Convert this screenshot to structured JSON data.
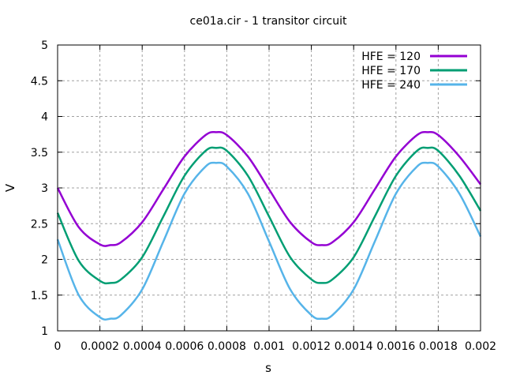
{
  "chart_data": {
    "type": "line",
    "title": "ce01a.cir - 1 transitor circuit",
    "xlabel": "s",
    "ylabel": "V",
    "xlim": [
      0,
      0.002
    ],
    "ylim": [
      1,
      5
    ],
    "x_ticks": [
      "0",
      "0.0002",
      "0.0004",
      "0.0006",
      "0.0008",
      "0.001",
      "0.0012",
      "0.0014",
      "0.0016",
      "0.0018",
      "0.002"
    ],
    "y_ticks": [
      "1",
      "1.5",
      "2",
      "2.5",
      "3",
      "3.5",
      "4",
      "4.5",
      "5"
    ],
    "grid": true,
    "legend_position": "top-right",
    "x": [
      0,
      0.0001,
      0.0002,
      0.00025,
      0.0003,
      0.0004,
      0.0005,
      0.0006,
      0.0007,
      0.00075,
      0.0008,
      0.0009,
      0.001,
      0.0011,
      0.0012,
      0.00125,
      0.0013,
      0.0014,
      0.0015,
      0.0016,
      0.0017,
      0.00175,
      0.0018,
      0.0019,
      0.002
    ],
    "series": [
      {
        "name": "HFE = 120",
        "color": "#9400d3",
        "values": [
          3.0,
          2.45,
          2.21,
          2.2,
          2.24,
          2.52,
          2.98,
          3.44,
          3.74,
          3.78,
          3.74,
          3.44,
          2.98,
          2.52,
          2.24,
          2.2,
          2.24,
          2.52,
          2.98,
          3.44,
          3.74,
          3.78,
          3.74,
          3.44,
          3.05
        ]
      },
      {
        "name": "HFE = 170",
        "color": "#009e73",
        "values": [
          2.65,
          1.98,
          1.7,
          1.67,
          1.72,
          2.03,
          2.6,
          3.17,
          3.52,
          3.56,
          3.52,
          3.17,
          2.6,
          2.03,
          1.72,
          1.67,
          1.72,
          2.03,
          2.6,
          3.17,
          3.52,
          3.56,
          3.52,
          3.17,
          2.68
        ]
      },
      {
        "name": "HFE = 240",
        "color": "#56b4e9",
        "values": [
          2.28,
          1.5,
          1.19,
          1.17,
          1.22,
          1.58,
          2.25,
          2.92,
          3.3,
          3.35,
          3.3,
          2.92,
          2.25,
          1.58,
          1.22,
          1.17,
          1.22,
          1.58,
          2.25,
          2.92,
          3.3,
          3.35,
          3.3,
          2.92,
          2.32
        ]
      }
    ]
  }
}
